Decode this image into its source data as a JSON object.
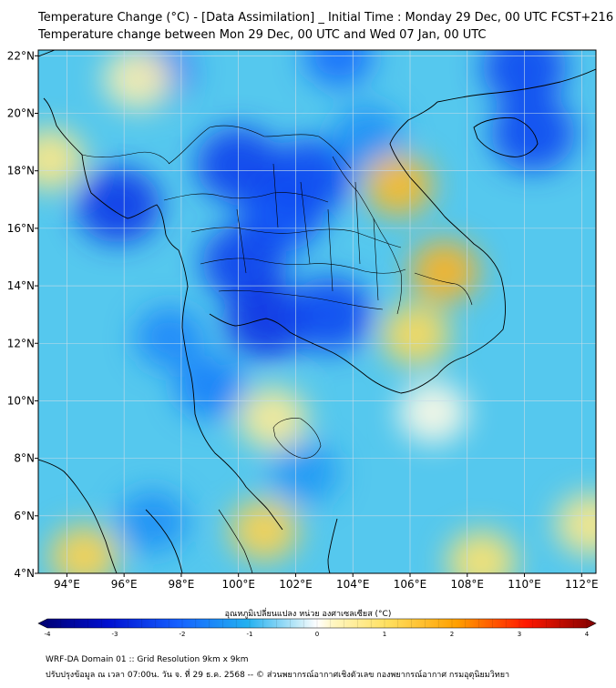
{
  "title": {
    "line1": "Temperature Change (°C) - [Data Assimilation] _ Initial Time : Monday 29 Dec, 00 UTC FCST+216",
    "line2": "Temperature change between Mon 29 Dec, 00 UTC and Wed 07 Jan, 00 UTC"
  },
  "map": {
    "lon_range": [
      93,
      112.5
    ],
    "lat_range": [
      4,
      22.2
    ],
    "x_ticks": [
      "94°E",
      "96°E",
      "98°E",
      "100°E",
      "102°E",
      "104°E",
      "106°E",
      "108°E",
      "110°E",
      "112°E"
    ],
    "x_tick_values": [
      94,
      96,
      98,
      100,
      102,
      104,
      106,
      108,
      110,
      112
    ],
    "y_ticks": [
      "22°N",
      "20°N",
      "18°N",
      "16°N",
      "14°N",
      "12°N",
      "10°N",
      "8°N",
      "6°N",
      "4°N"
    ],
    "y_tick_values": [
      22,
      20,
      18,
      16,
      14,
      12,
      10,
      8,
      6,
      4
    ],
    "background_color": "#55c8ee",
    "blobs": [
      {
        "lon": 101.5,
        "lat": 16.5,
        "value": -2.2
      },
      {
        "lon": 100.2,
        "lat": 14.8,
        "value": -2.4
      },
      {
        "lon": 101.0,
        "lat": 12.8,
        "value": -2.6
      },
      {
        "lon": 103.2,
        "lat": 13.0,
        "value": -2.3
      },
      {
        "lon": 102.5,
        "lat": 17.8,
        "value": -2.3
      },
      {
        "lon": 100.0,
        "lat": 18.2,
        "value": -2.4
      },
      {
        "lon": 95.8,
        "lat": 16.8,
        "value": -2.5
      },
      {
        "lon": 97.2,
        "lat": 21.5,
        "value": -1.8
      },
      {
        "lon": 103.5,
        "lat": 22.0,
        "value": -1.8
      },
      {
        "lon": 110.0,
        "lat": 21.6,
        "value": -2.3
      },
      {
        "lon": 110.3,
        "lat": 19.3,
        "value": -2.3
      },
      {
        "lon": 99.0,
        "lat": 10.5,
        "value": -1.6
      },
      {
        "lon": 97.6,
        "lat": 12.2,
        "value": -1.5
      },
      {
        "lon": 102.3,
        "lat": 7.5,
        "value": -1.3
      },
      {
        "lon": 97.0,
        "lat": 5.8,
        "value": -1.4
      },
      {
        "lon": 104.5,
        "lat": 19.2,
        "value": -1.4
      },
      {
        "lon": 105.6,
        "lat": 17.5,
        "value": 1.6
      },
      {
        "lon": 107.2,
        "lat": 14.5,
        "value": 1.7
      },
      {
        "lon": 106.2,
        "lat": 12.3,
        "value": 1.1
      },
      {
        "lon": 100.9,
        "lat": 5.5,
        "value": 1.2
      },
      {
        "lon": 94.6,
        "lat": 4.6,
        "value": 1.2
      },
      {
        "lon": 108.5,
        "lat": 4.4,
        "value": 0.9
      },
      {
        "lon": 101.2,
        "lat": 9.4,
        "value": 0.6
      },
      {
        "lon": 112.3,
        "lat": 5.7,
        "value": 0.7
      },
      {
        "lon": 96.5,
        "lat": 21.2,
        "value": 0.4
      },
      {
        "lon": 93.4,
        "lat": 18.4,
        "value": 0.7
      },
      {
        "lon": 106.8,
        "lat": 9.6,
        "value": 0.1
      }
    ],
    "colors": {
      "land_line": "#000000",
      "grid": "#c8dce8"
    }
  },
  "colorbar": {
    "title": "อุณหภูมิเปลี่ยนแปลง หน่วย องศาเซลเซียส (°C)",
    "ticks": [
      "-4",
      "-3",
      "-2",
      "-1",
      "0",
      "1",
      "2",
      "3",
      "4"
    ],
    "tick_values": [
      -4,
      -3,
      -2,
      -1,
      0,
      1,
      2,
      3,
      4
    ],
    "range": [
      -4,
      4
    ]
  },
  "footer": {
    "line1": "WRF-DA Domain 01 :: Grid Resolution 9km x 9km",
    "line2": "ปรับปรุงข้อมูล ณ เวลา 07:00น. วัน จ. ที่ 29 ธ.ค. 2568 -- © ส่วนพยากรณ์อากาศเชิงตัวเลข กองพยากรณ์อากาศ กรมอุตุนิยมวิทยา"
  }
}
